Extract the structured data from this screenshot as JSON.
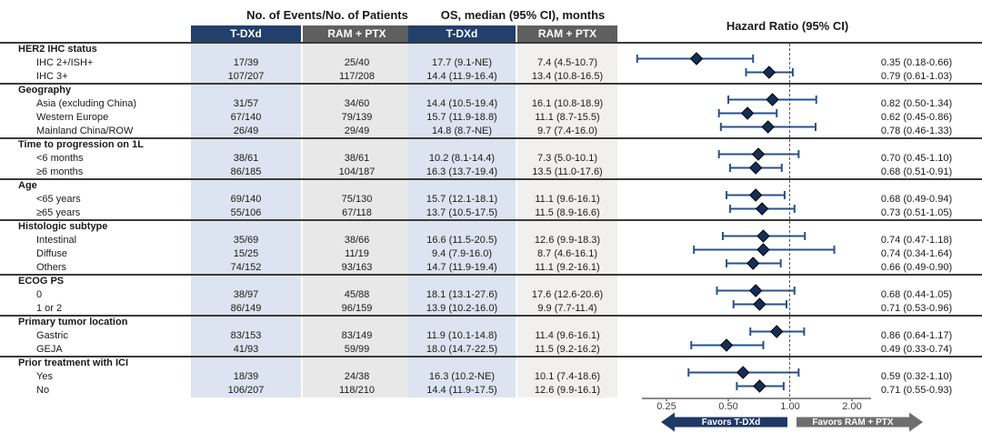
{
  "header": {
    "events_group": "No. of Events/No. of Patients",
    "os_group": "OS, median (95% CI), months",
    "hr_group": "Hazard Ratio (95% CI)",
    "col_tdxd": "T-DXd",
    "col_ram": "RAM + PTX"
  },
  "colors": {
    "navy_header": "#233f6b",
    "gray_header": "#5f5f5f",
    "band_blue": "#dbe4f0",
    "band_gray": "#e9e8e8",
    "ci_bar": "#27528c",
    "diamond": "#142f57",
    "arrow_navy": "#1f3864",
    "arrow_gray": "#6e6e6e"
  },
  "chart_data": {
    "type": "forest",
    "title": "Hazard Ratio (95% CI)",
    "x_axis": {
      "scale": "log2",
      "tick_labels": [
        "0.25",
        "0.50",
        "1.00",
        "2.00"
      ],
      "tick_values": [
        0.25,
        0.5,
        1.0,
        2.0
      ],
      "reference_line": 1.0
    },
    "favors": {
      "tdxd": "Favors T-DXd",
      "ram": "Favors RAM + PTX"
    },
    "sections": [
      {
        "label": "HER2 IHC status",
        "rows": [
          {
            "label": "IHC 2+/ISH+",
            "events_tdxd": "17/39",
            "events_ram": "25/40",
            "os_tdxd": "17.7 (9.1-NE)",
            "os_ram": "7.4 (4.5-10.7)",
            "hr": 0.35,
            "ci_low": 0.18,
            "ci_high": 0.66,
            "hr_text": "0.35 (0.18-0.66)"
          },
          {
            "label": "IHC 3+",
            "events_tdxd": "107/207",
            "events_ram": "117/208",
            "os_tdxd": "14.4 (11.9-16.4)",
            "os_ram": "13.4 (10.8-16.5)",
            "hr": 0.79,
            "ci_low": 0.61,
            "ci_high": 1.03,
            "hr_text": "0.79 (0.61-1.03)"
          }
        ]
      },
      {
        "label": "Geography",
        "rows": [
          {
            "label": "Asia (excluding China)",
            "events_tdxd": "31/57",
            "events_ram": "34/60",
            "os_tdxd": "14.4 (10.5-19.4)",
            "os_ram": "16.1 (10.8-18.9)",
            "hr": 0.82,
            "ci_low": 0.5,
            "ci_high": 1.34,
            "hr_text": "0.82 (0.50-1.34)"
          },
          {
            "label": "Western Europe",
            "events_tdxd": "67/140",
            "events_ram": "79/139",
            "os_tdxd": "15.7 (11.9-18.8)",
            "os_ram": "11.1 (8.7-15.5)",
            "hr": 0.62,
            "ci_low": 0.45,
            "ci_high": 0.86,
            "hr_text": "0.62 (0.45-0.86)"
          },
          {
            "label": "Mainland China/ROW",
            "events_tdxd": "26/49",
            "events_ram": "29/49",
            "os_tdxd": "14.8 (8.7-NE)",
            "os_ram": "9.7 (7.4-16.0)",
            "hr": 0.78,
            "ci_low": 0.46,
            "ci_high": 1.33,
            "hr_text": "0.78 (0.46-1.33)"
          }
        ]
      },
      {
        "label": "Time to progression on 1L",
        "rows": [
          {
            "label": "<6 months",
            "events_tdxd": "38/61",
            "events_ram": "38/61",
            "os_tdxd": "10.2 (8.1-14.4)",
            "os_ram": "7.3 (5.0-10.1)",
            "hr": 0.7,
            "ci_low": 0.45,
            "ci_high": 1.1,
            "hr_text": "0.70 (0.45-1.10)"
          },
          {
            "label": "≥6 months",
            "events_tdxd": "86/185",
            "events_ram": "104/187",
            "os_tdxd": "16.3 (13.7-19.4)",
            "os_ram": "13.5 (11.0-17.6)",
            "hr": 0.68,
            "ci_low": 0.51,
            "ci_high": 0.91,
            "hr_text": "0.68 (0.51-0.91)"
          }
        ]
      },
      {
        "label": "Age",
        "rows": [
          {
            "label": "<65 years",
            "events_tdxd": "69/140",
            "events_ram": "75/130",
            "os_tdxd": "15.7 (12.1-18.1)",
            "os_ram": "11.1 (9.6-16.1)",
            "hr": 0.68,
            "ci_low": 0.49,
            "ci_high": 0.94,
            "hr_text": "0.68 (0.49-0.94)"
          },
          {
            "label": "≥65 years",
            "events_tdxd": "55/106",
            "events_ram": "67/118",
            "os_tdxd": "13.7 (10.5-17.5)",
            "os_ram": "11.5 (8.9-16.6)",
            "hr": 0.73,
            "ci_low": 0.51,
            "ci_high": 1.05,
            "hr_text": "0.73 (0.51-1.05)"
          }
        ]
      },
      {
        "label": "Histologic subtype",
        "rows": [
          {
            "label": "Intestinal",
            "events_tdxd": "35/69",
            "events_ram": "38/66",
            "os_tdxd": "16.6 (11.5-20.5)",
            "os_ram": "12.6 (9.9-18.3)",
            "hr": 0.74,
            "ci_low": 0.47,
            "ci_high": 1.18,
            "hr_text": "0.74 (0.47-1.18)"
          },
          {
            "label": "Diffuse",
            "events_tdxd": "15/25",
            "events_ram": "11/19",
            "os_tdxd": "9.4 (7.9-16.0)",
            "os_ram": "8.7 (4.6-16.1)",
            "hr": 0.74,
            "ci_low": 0.34,
            "ci_high": 1.64,
            "hr_text": "0.74 (0.34-1.64)"
          },
          {
            "label": "Others",
            "events_tdxd": "74/152",
            "events_ram": "93/163",
            "os_tdxd": "14.7 (11.9-19.4)",
            "os_ram": "11.1 (9.2-16.1)",
            "hr": 0.66,
            "ci_low": 0.49,
            "ci_high": 0.9,
            "hr_text": "0.66 (0.49-0.90)"
          }
        ]
      },
      {
        "label": "ECOG PS",
        "rows": [
          {
            "label": "0",
            "events_tdxd": "38/97",
            "events_ram": "45/88",
            "os_tdxd": "18.1 (13.1-27.6)",
            "os_ram": "17.6 (12.6-20.6)",
            "hr": 0.68,
            "ci_low": 0.44,
            "ci_high": 1.05,
            "hr_text": "0.68 (0.44-1.05)"
          },
          {
            "label": "1 or 2",
            "events_tdxd": "86/149",
            "events_ram": "96/159",
            "os_tdxd": "13.9 (10.2-16.0)",
            "os_ram": "9.9 (7.7-11.4)",
            "hr": 0.71,
            "ci_low": 0.53,
            "ci_high": 0.96,
            "hr_text": "0.71 (0.53-0.96)"
          }
        ]
      },
      {
        "label": "Primary tumor location",
        "rows": [
          {
            "label": "Gastric",
            "events_tdxd": "83/153",
            "events_ram": "83/149",
            "os_tdxd": "11.9 (10.1-14.8)",
            "os_ram": "11.4 (9.6-16.1)",
            "hr": 0.86,
            "ci_low": 0.64,
            "ci_high": 1.17,
            "hr_text": "0.86 (0.64-1.17)"
          },
          {
            "label": "GEJA",
            "events_tdxd": "41/93",
            "events_ram": "59/99",
            "os_tdxd": "18.0 (14.7-22.5)",
            "os_ram": "11.5 (9.2-16.2)",
            "hr": 0.49,
            "ci_low": 0.33,
            "ci_high": 0.74,
            "hr_text": "0.49 (0.33-0.74)"
          }
        ]
      },
      {
        "label": "Prior treatment with ICI",
        "rows": [
          {
            "label": "Yes",
            "events_tdxd": "18/39",
            "events_ram": "24/38",
            "os_tdxd": "16.3 (10.2-NE)",
            "os_ram": "10.1 (7.4-18.6)",
            "hr": 0.59,
            "ci_low": 0.32,
            "ci_high": 1.1,
            "hr_text": "0.59 (0.32-1.10)"
          },
          {
            "label": "No",
            "events_tdxd": "106/207",
            "events_ram": "118/210",
            "os_tdxd": "14.4 (11.9-17.5)",
            "os_ram": "12.6 (9.9-16.1)",
            "hr": 0.71,
            "ci_low": 0.55,
            "ci_high": 0.93,
            "hr_text": "0.71 (0.55-0.93)"
          }
        ]
      }
    ]
  }
}
